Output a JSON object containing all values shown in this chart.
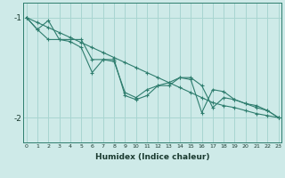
{
  "xlabel": "Humidex (Indice chaleur)",
  "background_color": "#ceeae8",
  "line_color": "#2e7d6e",
  "grid_color": "#a8d5d1",
  "x": [
    0,
    1,
    2,
    3,
    4,
    5,
    6,
    7,
    8,
    9,
    10,
    11,
    12,
    13,
    14,
    15,
    16,
    17,
    18,
    19,
    20,
    21,
    22,
    23
  ],
  "series_straight": [
    -1.0,
    -1.05,
    -1.1,
    -1.15,
    -1.2,
    -1.25,
    -1.3,
    -1.35,
    -1.4,
    -1.45,
    -1.5,
    -1.55,
    -1.6,
    -1.65,
    -1.7,
    -1.75,
    -1.8,
    -1.85,
    -1.88,
    -1.9,
    -1.93,
    -1.96,
    -1.98,
    -2.0
  ],
  "series_jagged1": [
    -1.0,
    -1.12,
    -1.03,
    -1.22,
    -1.24,
    -1.3,
    -1.55,
    -1.42,
    -1.44,
    -1.75,
    -1.8,
    -1.72,
    -1.68,
    -1.65,
    -1.6,
    -1.62,
    -1.95,
    -1.72,
    -1.74,
    -1.82,
    -1.86,
    -1.9,
    -1.93,
    -2.0
  ],
  "series_jagged2": [
    -1.0,
    -1.12,
    -1.22,
    -1.22,
    -1.22,
    -1.22,
    -1.42,
    -1.42,
    -1.42,
    -1.78,
    -1.82,
    -1.78,
    -1.68,
    -1.68,
    -1.6,
    -1.6,
    -1.68,
    -1.9,
    -1.8,
    -1.82,
    -1.86,
    -1.88,
    -1.93,
    -2.0
  ],
  "ylim": [
    -2.25,
    -0.85
  ],
  "yticks": [
    -2.0,
    -1.0
  ],
  "xlim": [
    -0.3,
    23.3
  ]
}
